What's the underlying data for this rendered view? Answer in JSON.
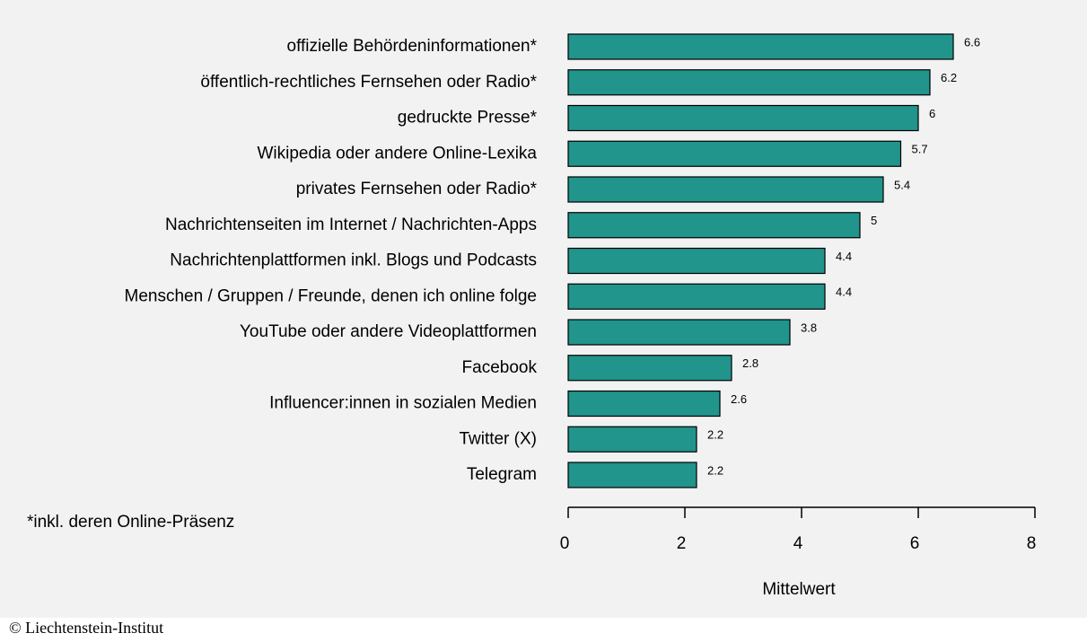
{
  "chart_data": {
    "type": "barh",
    "categories": [
      "offizielle Behördeninformationen*",
      "öffentlich-rechtliches Fernsehen oder Radio*",
      "gedruckte Presse*",
      "Wikipedia oder andere Online-Lexika",
      "privates Fernsehen oder Radio*",
      "Nachrichtenseiten im Internet / Nachrichten-Apps",
      "Nachrichtenplattformen inkl. Blogs und Podcasts",
      "Menschen / Gruppen / Freunde, denen ich online folge",
      "YouTube oder andere Videoplattformen",
      "Facebook",
      "Influencer:innen in sozialen Medien",
      "Twitter (X)",
      "Telegram"
    ],
    "values": [
      6.6,
      6.2,
      6,
      5.7,
      5.4,
      5,
      4.4,
      4.4,
      3.8,
      2.8,
      2.6,
      2.2,
      2.2
    ],
    "color": "#21948b",
    "xlim": [
      0,
      8
    ],
    "xticks": [
      0,
      2,
      4,
      6,
      8
    ],
    "xlabel": "Mittelwert",
    "footnote": "*inkl. deren Online-Präsenz",
    "source": "© Liechtenstein-Institut"
  }
}
